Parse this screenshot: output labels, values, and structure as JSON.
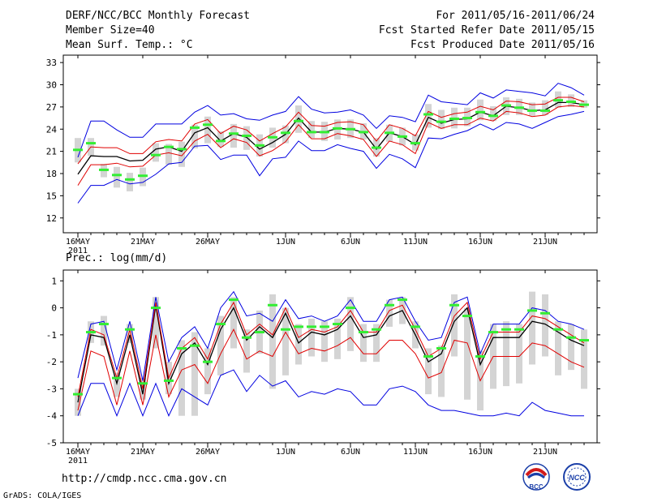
{
  "header": {
    "title": "DERF/NCC/BCC Monthly Forecast",
    "member_size": "Member Size=40",
    "variable": "Mean Surf. Temp.: °C",
    "period": "For 2011/05/16-2011/06/24",
    "started": "Fcst Started Refer Date 2011/05/15",
    "produced": "Fcst Produced Date 2011/05/16"
  },
  "footer": {
    "url": "http://cmdp.ncc.cma.gov.cn",
    "credit": "GrADS: COLA/IGES",
    "logo_bcc": "BCC",
    "logo_ncc": "NCC"
  },
  "colors": {
    "ensemble_mean": "#000000",
    "band_inner": "#e00000",
    "band_outer": "#0000e0",
    "box": "#d4d4d4",
    "median": "#33ee33",
    "frame": "#000000"
  },
  "chart_data": [
    {
      "type": "line",
      "title": "Mean Surf. Temp.: °C",
      "xlabel": "",
      "ylabel": "",
      "x_ticks": [
        "16MAY",
        "21MAY",
        "26MAY",
        "1JUN",
        "6JUN",
        "11JUN",
        "16JUN",
        "21JUN"
      ],
      "x_tick_days": [
        0,
        5,
        10,
        16,
        21,
        26,
        31,
        36
      ],
      "x_year_label": "2011",
      "ylim": [
        10,
        34
      ],
      "y_ticks": [
        12,
        15,
        18,
        21,
        24,
        27,
        30,
        33
      ],
      "days": [
        0,
        1,
        2,
        3,
        4,
        5,
        6,
        7,
        8,
        9,
        10,
        11,
        12,
        13,
        14,
        15,
        16,
        17,
        18,
        19,
        20,
        21,
        22,
        23,
        24,
        25,
        26,
        27,
        28,
        29,
        30,
        31,
        32,
        33,
        34,
        35,
        36,
        37,
        38,
        39
      ],
      "series": [
        {
          "name": "ensemble mean",
          "values": [
            17.9,
            20.4,
            20.3,
            20.3,
            19.7,
            19.8,
            21.3,
            21.6,
            21.0,
            23.5,
            24.2,
            22.4,
            23.4,
            22.9,
            21.3,
            22.2,
            23.3,
            25.5,
            23.6,
            23.6,
            24.1,
            24.0,
            23.6,
            21.3,
            23.5,
            23.0,
            21.9,
            25.6,
            24.8,
            25.3,
            25.4,
            26.3,
            25.8,
            27.1,
            26.9,
            26.5,
            26.6,
            27.6,
            27.6,
            27.3
          ]
        },
        {
          "name": "mean + sd",
          "values": [
            19.3,
            21.6,
            21.5,
            21.5,
            20.7,
            20.7,
            22.3,
            22.6,
            22.4,
            24.7,
            25.3,
            23.4,
            24.4,
            23.9,
            22.4,
            23.4,
            24.3,
            26.3,
            24.5,
            24.4,
            24.9,
            25.0,
            24.6,
            22.4,
            24.6,
            24.1,
            23.1,
            26.4,
            25.6,
            26.1,
            26.3,
            27.1,
            26.6,
            27.8,
            27.7,
            27.3,
            27.4,
            28.3,
            28.3,
            27.7
          ]
        },
        {
          "name": "mean - sd",
          "values": [
            16.4,
            19.2,
            19.2,
            19.4,
            18.9,
            19.0,
            20.5,
            20.8,
            20.4,
            22.4,
            23.3,
            21.5,
            22.7,
            22.2,
            20.4,
            21.1,
            22.3,
            24.6,
            22.7,
            22.7,
            23.4,
            23.1,
            22.6,
            20.3,
            22.4,
            21.9,
            20.7,
            24.9,
            24.1,
            24.6,
            24.6,
            25.5,
            25.1,
            26.4,
            26.2,
            25.7,
            25.9,
            27.0,
            27.2,
            27.0
          ]
        },
        {
          "name": "max",
          "values": [
            20.2,
            25.1,
            25.1,
            23.9,
            22.9,
            22.9,
            24.7,
            24.7,
            24.7,
            26.3,
            27.2,
            25.9,
            26.1,
            25.4,
            25.2,
            25.9,
            26.4,
            28.4,
            26.7,
            26.2,
            26.3,
            26.6,
            25.9,
            24.1,
            25.8,
            25.6,
            25.0,
            28.6,
            27.7,
            27.5,
            27.3,
            28.9,
            28.2,
            29.3,
            29.1,
            28.9,
            28.5,
            30.2,
            29.6,
            28.6
          ]
        },
        {
          "name": "min",
          "values": [
            14.0,
            16.4,
            16.4,
            17.2,
            16.6,
            16.8,
            17.9,
            19.3,
            19.5,
            21.7,
            21.8,
            19.9,
            20.5,
            20.5,
            17.7,
            20.0,
            20.2,
            22.4,
            21.1,
            21.1,
            21.9,
            21.4,
            21.0,
            18.7,
            20.6,
            20.0,
            18.8,
            22.8,
            22.7,
            23.3,
            23.8,
            24.7,
            23.9,
            24.9,
            24.7,
            24.1,
            24.9,
            25.7,
            26.0,
            26.4
          ]
        }
      ],
      "boxes": {
        "low": [
          19.5,
          20.4,
          17.5,
          16.1,
          15.6,
          16.3,
          19.6,
          19.2,
          18.9,
          21.4,
          22.1,
          21.6,
          21.5,
          21.2,
          20.3,
          21.5,
          22.1,
          23.5,
          22.8,
          22.4,
          22.6,
          22.8,
          22.6,
          20.3,
          22.3,
          21.8,
          21.1,
          24.2,
          24.0,
          24.1,
          24.4,
          25.2,
          25.1,
          25.9,
          25.9,
          25.8,
          25.9,
          26.9,
          27.0,
          26.9
        ],
        "high": [
          22.8,
          22.8,
          19.3,
          18.9,
          18.1,
          18.8,
          22.1,
          22.0,
          22.3,
          24.6,
          25.7,
          23.7,
          24.7,
          24.4,
          23.3,
          24.2,
          24.5,
          27.2,
          25.1,
          25.0,
          25.3,
          25.3,
          24.8,
          22.8,
          24.6,
          24.2,
          23.3,
          27.4,
          26.6,
          26.9,
          26.9,
          28.0,
          27.1,
          28.3,
          28.1,
          27.6,
          27.9,
          29.1,
          28.7,
          27.9
        ],
        "median": [
          21.2,
          22.1,
          18.5,
          17.8,
          17.2,
          17.7,
          20.5,
          21.6,
          21.3,
          24.2,
          24.6,
          22.4,
          23.4,
          23.1,
          21.8,
          22.9,
          23.5,
          25.1,
          23.6,
          23.6,
          24.1,
          24.0,
          23.6,
          21.5,
          23.5,
          23.0,
          22.1,
          26.0,
          25.0,
          25.4,
          25.5,
          26.3,
          25.8,
          27.2,
          26.9,
          26.5,
          26.5,
          27.9,
          27.7,
          27.3
        ]
      }
    },
    {
      "type": "line",
      "title": "Prec.: log(mm/d)",
      "xlabel": "",
      "ylabel": "",
      "x_ticks": [
        "16MAY",
        "21MAY",
        "26MAY",
        "1JUN",
        "6JUN",
        "11JUN",
        "16JUN",
        "21JUN"
      ],
      "x_tick_days": [
        0,
        5,
        10,
        16,
        21,
        26,
        31,
        36
      ],
      "x_year_label": "2011",
      "ylim": [
        -5,
        1.4
      ],
      "y_ticks": [
        -5,
        -4,
        -3,
        -2,
        -1,
        0,
        1
      ],
      "days": [
        0,
        1,
        2,
        3,
        4,
        5,
        6,
        7,
        8,
        9,
        10,
        11,
        12,
        13,
        14,
        15,
        16,
        17,
        18,
        19,
        20,
        21,
        22,
        23,
        24,
        25,
        26,
        27,
        28,
        29,
        30,
        31,
        32,
        33,
        34,
        35,
        36,
        37,
        38,
        39
      ],
      "series": [
        {
          "name": "ensemble mean",
          "values": [
            -3.5,
            -1.0,
            -1.1,
            -2.8,
            -1.0,
            -3.2,
            0.1,
            -2.8,
            -1.7,
            -1.3,
            -2.1,
            -0.8,
            0.0,
            -1.2,
            -0.7,
            -1.1,
            -0.2,
            -1.3,
            -0.9,
            -1.0,
            -0.8,
            -0.3,
            -1.1,
            -1.0,
            -0.3,
            -0.1,
            -1.0,
            -2.0,
            -1.7,
            -0.5,
            0.0,
            -2.1,
            -1.1,
            -1.1,
            -1.1,
            -0.5,
            -0.6,
            -0.9,
            -1.2,
            -1.4
          ]
        },
        {
          "name": "mean + sd",
          "values": [
            -3.3,
            -0.8,
            -1.0,
            -2.6,
            -0.8,
            -3.0,
            0.2,
            -2.6,
            -1.5,
            -1.1,
            -1.9,
            -0.6,
            0.2,
            -1.0,
            -0.6,
            -1.0,
            0.0,
            -1.1,
            -0.8,
            -0.9,
            -0.7,
            -0.1,
            -0.9,
            -0.9,
            -0.1,
            0.1,
            -0.8,
            -1.8,
            -1.5,
            -0.3,
            0.2,
            -1.9,
            -0.9,
            -0.9,
            -0.9,
            -0.3,
            -0.4,
            -0.7,
            -1.0,
            -1.3
          ]
        },
        {
          "name": "mean - sd",
          "values": [
            -3.8,
            -1.6,
            -1.8,
            -3.6,
            -1.6,
            -3.6,
            -1.0,
            -3.3,
            -2.3,
            -2.1,
            -2.8,
            -1.7,
            -0.8,
            -1.9,
            -1.6,
            -1.8,
            -0.9,
            -1.7,
            -1.5,
            -1.6,
            -1.4,
            -1.1,
            -1.7,
            -1.7,
            -1.2,
            -1.2,
            -1.7,
            -2.6,
            -2.4,
            -1.2,
            -1.3,
            -2.7,
            -1.8,
            -1.8,
            -1.8,
            -1.3,
            -1.4,
            -1.7,
            -2.0,
            -2.2
          ]
        },
        {
          "name": "max",
          "values": [
            -2.6,
            -0.6,
            -0.5,
            -2.3,
            -0.5,
            -2.7,
            0.4,
            -2.0,
            -1.1,
            -0.7,
            -1.5,
            0.0,
            0.6,
            -0.3,
            -0.2,
            -0.5,
            0.3,
            -0.4,
            -0.3,
            -0.5,
            -0.3,
            0.3,
            -0.5,
            -0.5,
            0.3,
            0.4,
            -0.5,
            -1.2,
            -1.1,
            0.2,
            0.4,
            -1.7,
            -0.6,
            -0.6,
            -0.6,
            0.0,
            -0.1,
            -0.5,
            -0.6,
            -0.8
          ]
        },
        {
          "name": "min",
          "values": [
            -4.0,
            -2.8,
            -2.8,
            -4.0,
            -2.8,
            -4.0,
            -2.8,
            -4.0,
            -3.0,
            -3.3,
            -3.6,
            -2.5,
            -2.3,
            -3.1,
            -2.5,
            -2.9,
            -2.7,
            -3.3,
            -3.1,
            -3.2,
            -3.0,
            -3.1,
            -3.6,
            -3.6,
            -3.0,
            -2.9,
            -3.1,
            -3.6,
            -3.8,
            -3.8,
            -3.9,
            -4.0,
            -4.0,
            -3.9,
            -4.0,
            -3.5,
            -3.8,
            -3.9,
            -4.0,
            -4.0
          ]
        }
      ],
      "boxes": {
        "low": [
          -4.0,
          -1.3,
          -1.4,
          -3.3,
          -1.3,
          -3.4,
          -1.5,
          -3.2,
          -4.0,
          -4.0,
          -3.2,
          -2.5,
          -1.5,
          -2.4,
          -1.7,
          -3.0,
          -2.5,
          -2.1,
          -1.8,
          -2.0,
          -1.9,
          -1.6,
          -2.0,
          -2.0,
          -0.7,
          -0.6,
          -1.5,
          -3.2,
          -3.3,
          -1.8,
          -3.4,
          -3.8,
          -3.0,
          -2.9,
          -2.8,
          -2.1,
          -1.8,
          -2.5,
          -2.3,
          -3.0
        ],
        "high": [
          -3.0,
          -0.5,
          -0.3,
          -2.4,
          -0.6,
          -2.6,
          0.4,
          -2.0,
          -1.2,
          -0.9,
          -1.5,
          -0.3,
          0.4,
          -0.8,
          -0.1,
          0.5,
          0.0,
          -0.6,
          -0.4,
          -0.5,
          -0.4,
          0.4,
          -0.6,
          -0.6,
          0.3,
          0.4,
          -0.5,
          -1.5,
          -1.4,
          0.5,
          0.0,
          -1.6,
          -0.6,
          -0.5,
          -0.6,
          0.6,
          0.5,
          -0.5,
          -0.6,
          -0.8
        ],
        "median": [
          -3.2,
          -0.9,
          -0.6,
          -2.6,
          -0.8,
          -2.8,
          0.0,
          -2.7,
          -1.5,
          -1.4,
          -2.0,
          -0.6,
          0.3,
          -1.1,
          -0.9,
          0.1,
          -0.8,
          -0.7,
          -0.7,
          -0.7,
          -0.6,
          0.0,
          -0.9,
          -0.8,
          0.1,
          0.3,
          -0.7,
          -1.8,
          -1.5,
          0.1,
          -0.3,
          -1.8,
          -0.9,
          -0.8,
          -0.8,
          -0.1,
          -0.2,
          -0.8,
          -1.1,
          -1.2
        ]
      }
    }
  ]
}
